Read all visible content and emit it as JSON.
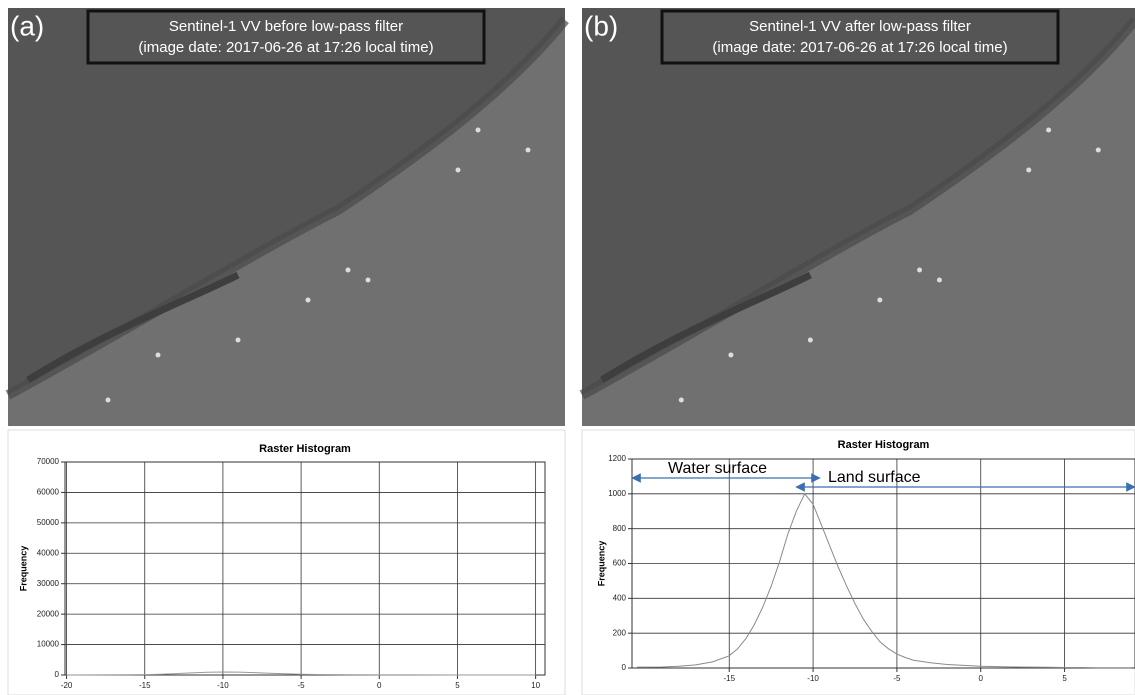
{
  "panels": [
    {
      "label": "(a)",
      "caption": [
        "Sentinel-1 VV before low-pass filter",
        "(image date: 2017-06-26 at 17:26 local time)"
      ]
    },
    {
      "label": "(b)",
      "caption": [
        "Sentinel-1 VV after low-pass filter",
        "(image date: 2017-06-26 at 17:26 local time)"
      ]
    }
  ],
  "chart_data": [
    {
      "type": "line",
      "title": "Raster Histogram",
      "y_label": "Frequency",
      "color": "#999999",
      "x": [
        -20,
        -18,
        -16,
        -15,
        -14,
        -13,
        -12,
        -11,
        -10,
        -9,
        -8,
        -7,
        -6,
        -5,
        -4,
        -2,
        0,
        2,
        5,
        8,
        10
      ],
      "values": [
        0,
        20,
        60,
        120,
        250,
        450,
        700,
        900,
        1000,
        950,
        800,
        600,
        400,
        250,
        150,
        80,
        40,
        20,
        10,
        5,
        0
      ],
      "xlim": [
        -20.1,
        10.6
      ],
      "xticks": [
        -20,
        -15,
        -10,
        -5,
        0,
        5,
        10
      ],
      "ylim": [
        0,
        70000
      ],
      "yticks": [
        0,
        10000,
        20000,
        30000,
        40000,
        50000,
        60000,
        70000
      ],
      "grid": true
    },
    {
      "type": "line",
      "title": "Raster Histogram",
      "y_label": "Frequency",
      "color": "#8a8a8a",
      "annotations": [
        "Water surface",
        "Land surface"
      ],
      "x": [
        -20.5,
        -19,
        -18,
        -17,
        -16,
        -15,
        -14.5,
        -14,
        -13.5,
        -13,
        -12.5,
        -12,
        -11.5,
        -11,
        -10.5,
        -10,
        -9.5,
        -9,
        -8.5,
        -8,
        -7.5,
        -7,
        -6.5,
        -6,
        -5.5,
        -5,
        -4.5,
        -4,
        -3,
        -2,
        -1,
        0,
        1,
        2,
        3,
        4,
        5,
        6,
        7,
        8,
        9
      ],
      "values": [
        5,
        6,
        10,
        18,
        35,
        70,
        110,
        170,
        250,
        350,
        470,
        610,
        770,
        900,
        1000,
        940,
        820,
        700,
        580,
        470,
        370,
        280,
        210,
        150,
        110,
        80,
        60,
        45,
        30,
        20,
        15,
        10,
        8,
        6,
        5,
        4,
        3,
        3,
        2,
        2,
        2
      ],
      "xlim": [
        -20.8,
        9.2
      ],
      "xticks": [
        -15,
        -10,
        -5,
        0,
        5
      ],
      "ylim": [
        0,
        1200
      ],
      "yticks": [
        0,
        200,
        400,
        600,
        800,
        1000,
        1200
      ],
      "grid": true
    }
  ]
}
